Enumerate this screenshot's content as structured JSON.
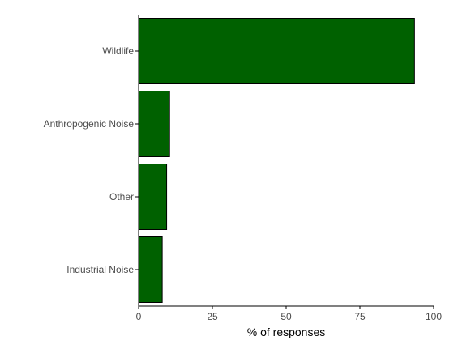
{
  "chart_data": {
    "type": "bar",
    "orientation": "horizontal",
    "title": "",
    "xlabel": "% of responses",
    "ylabel": "",
    "categories": [
      "Wildlife",
      "Anthropogenic Noise",
      "Other",
      "Industrial Noise"
    ],
    "values": [
      93.5,
      10.5,
      9.5,
      8.0
    ],
    "xlim": [
      0,
      100
    ],
    "xticks": [
      "0",
      "25",
      "50",
      "75",
      "100"
    ],
    "grid": false,
    "legend": "none",
    "colors": {
      "bar_fill": "#006100",
      "bar_stroke": "#000000",
      "axis": "#000000",
      "tick_text": "#4d4d4d"
    }
  }
}
